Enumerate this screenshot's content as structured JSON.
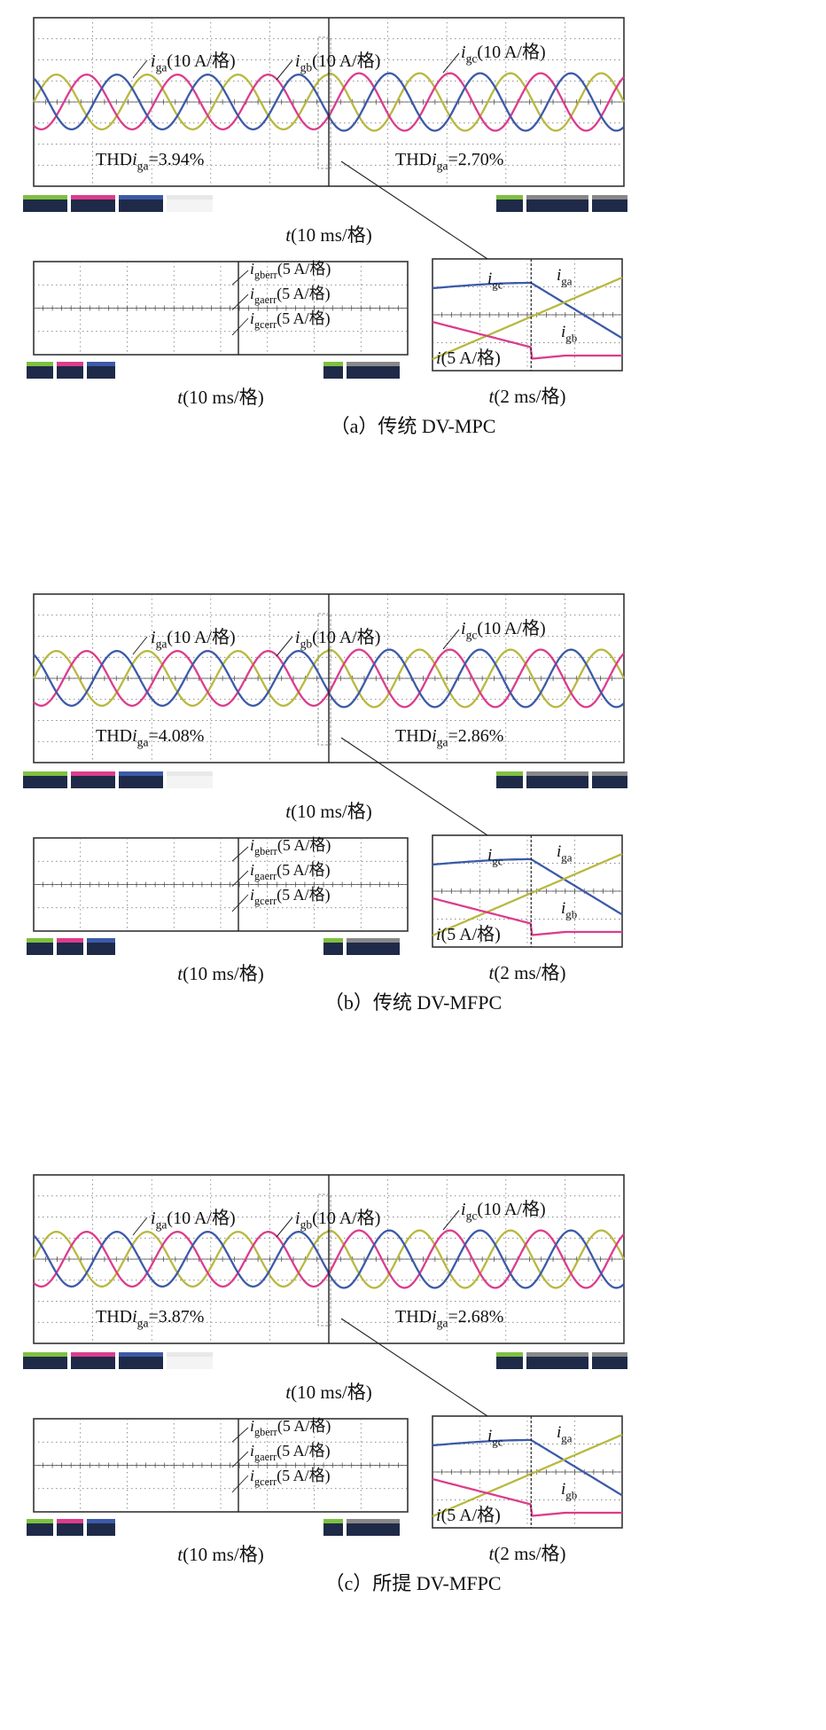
{
  "panels": [
    {
      "caption": "（a）传统 DV-MPC",
      "main": {
        "xlabel": "t(10 ms/格)",
        "labels": {
          "iga": {
            "base": "i",
            "sub": "ga",
            "suffix": "(10 A/格)"
          },
          "igb": {
            "base": "i",
            "sub": "gb",
            "suffix": "(10 A/格)"
          },
          "igc": {
            "base": "i",
            "sub": "gc",
            "suffix": "(10 A/格)"
          }
        },
        "thd_before": {
          "prefix": "THD",
          "base": "i",
          "sub": "ga",
          "value": "=3.94%"
        },
        "thd_after": {
          "prefix": "THD",
          "base": "i",
          "sub": "ga",
          "value": "=2.70%"
        }
      },
      "err": {
        "xlabel": "t(10 ms/格)",
        "labels": [
          {
            "base": "i",
            "sub": "gberr",
            "suffix": "(5 A/格)"
          },
          {
            "base": "i",
            "sub": "gaerr",
            "suffix": "(5 A/格)"
          },
          {
            "base": "i",
            "sub": "gcerr",
            "suffix": "(5 A/格)"
          }
        ]
      },
      "zoom": {
        "xlabel": "t(2 ms/格)",
        "ylabel": "i(5 A/格)",
        "labels": {
          "igc": {
            "base": "i",
            "sub": "gc"
          },
          "iga": {
            "base": "i",
            "sub": "ga"
          },
          "igb": {
            "base": "i",
            "sub": "gb"
          }
        }
      }
    },
    {
      "caption": "（b）传统 DV-MFPC",
      "main": {
        "xlabel": "t(10 ms/格)",
        "labels": {
          "iga": {
            "base": "i",
            "sub": "ga",
            "suffix": "(10 A/格)"
          },
          "igb": {
            "base": "i",
            "sub": "gb",
            "suffix": "(10 A/格)"
          },
          "igc": {
            "base": "i",
            "sub": "gc",
            "suffix": "(10 A/格)"
          }
        },
        "thd_before": {
          "prefix": "THD",
          "base": "i",
          "sub": "ga",
          "value": "=4.08%"
        },
        "thd_after": {
          "prefix": "THD",
          "base": "i",
          "sub": "ga",
          "value": "=2.86%"
        }
      },
      "err": {
        "xlabel": "t(10 ms/格)",
        "labels": [
          {
            "base": "i",
            "sub": "gberr",
            "suffix": "(5 A/格)"
          },
          {
            "base": "i",
            "sub": "gaerr",
            "suffix": "(5 A/格)"
          },
          {
            "base": "i",
            "sub": "gcerr",
            "suffix": "(5 A/格)"
          }
        ]
      },
      "zoom": {
        "xlabel": "t(2 ms/格)",
        "ylabel": "i(5 A/格)",
        "labels": {
          "igc": {
            "base": "i",
            "sub": "gc"
          },
          "iga": {
            "base": "i",
            "sub": "ga"
          },
          "igb": {
            "base": "i",
            "sub": "gb"
          }
        }
      }
    },
    {
      "caption": "（c）所提 DV-MFPC",
      "main": {
        "xlabel": "t(10 ms/格)",
        "labels": {
          "iga": {
            "base": "i",
            "sub": "ga",
            "suffix": "(10 A/格)"
          },
          "igb": {
            "base": "i",
            "sub": "gb",
            "suffix": "(10 A/格)"
          },
          "igc": {
            "base": "i",
            "sub": "gc",
            "suffix": "(10 A/格)"
          }
        },
        "thd_before": {
          "prefix": "THD",
          "base": "i",
          "sub": "ga",
          "value": "=3.87%"
        },
        "thd_after": {
          "prefix": "THD",
          "base": "i",
          "sub": "ga",
          "value": "=2.68%"
        }
      },
      "err": {
        "xlabel": "t(10 ms/格)",
        "labels": [
          {
            "base": "i",
            "sub": "gberr",
            "suffix": "(5 A/格)"
          },
          {
            "base": "i",
            "sub": "gaerr",
            "suffix": "(5 A/格)"
          },
          {
            "base": "i",
            "sub": "gcerr",
            "suffix": "(5 A/格)"
          }
        ]
      },
      "zoom": {
        "xlabel": "t(2 ms/格)",
        "ylabel": "i(5 A/格)",
        "labels": {
          "igc": {
            "base": "i",
            "sub": "gc"
          },
          "iga": {
            "base": "i",
            "sub": "ga"
          },
          "igb": {
            "base": "i",
            "sub": "gb"
          }
        }
      }
    }
  ],
  "colors": {
    "iga": "#b8b840",
    "igb": "#dc3c8c",
    "igc": "#3c5aa8",
    "grid": "#666666",
    "frame": "#333333",
    "status_green": "#7ec040",
    "status_dark": "#2a3a5a"
  },
  "chart_data": {
    "type": "line",
    "series": [
      {
        "name": "iga",
        "amplitude_div": 1.0,
        "phase_deg": 0
      },
      {
        "name": "igb",
        "amplitude_div": 1.0,
        "phase_deg": -120
      },
      {
        "name": "igc",
        "amplitude_div": 1.0,
        "phase_deg": 120
      }
    ],
    "cycles_per_screen": 6.5,
    "step_at_division": 5
  }
}
